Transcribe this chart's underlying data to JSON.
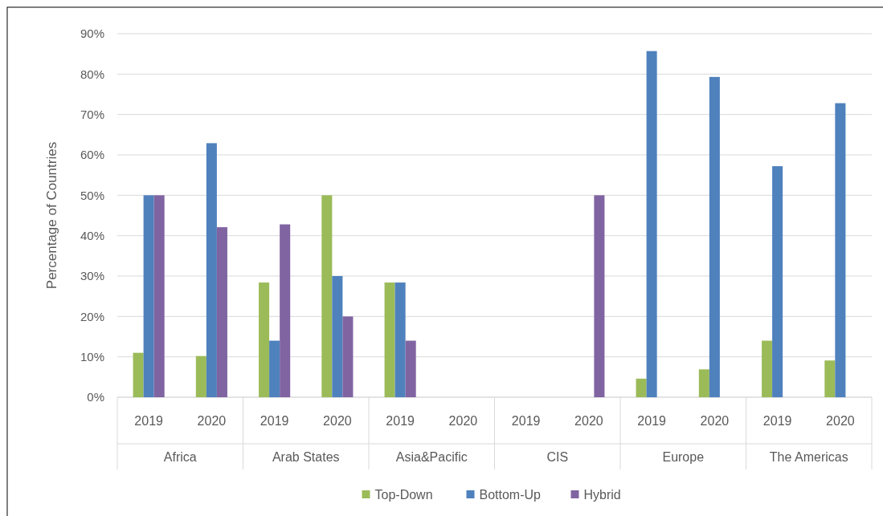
{
  "chart_data": {
    "type": "bar",
    "ylabel": "Percentage of Countries",
    "categories": [
      "2019",
      "2020",
      "2019",
      "2020",
      "2019",
      "2020",
      "2019",
      "2020",
      "2019",
      "2020",
      "2019",
      "2020"
    ],
    "annotations": [
      "Africa",
      "Arab States",
      "Asia&Pacific",
      "CIS",
      "Europe",
      "The Americas"
    ],
    "series": [
      {
        "name": "Top-Down",
        "color": "#9bbb59",
        "values": [
          11,
          10.2,
          28.4,
          50,
          28.4,
          0,
          0,
          0,
          4.6,
          6.9,
          14,
          9.1
        ]
      },
      {
        "name": "Bottom-Up",
        "color": "#4f81bd",
        "values": [
          50,
          62.9,
          14,
          30,
          28.4,
          0,
          0,
          0,
          85.7,
          79.3,
          57.2,
          72.8
        ]
      },
      {
        "name": "Hybrid",
        "color": "#8064a2",
        "values": [
          50,
          42.1,
          42.8,
          20,
          14,
          0,
          0,
          50,
          0,
          0,
          0,
          0
        ]
      }
    ],
    "ylim": [
      0,
      90
    ],
    "yticks": [
      {
        "value": 0,
        "label": "0%"
      },
      {
        "value": 10,
        "label": "10%"
      },
      {
        "value": 20,
        "label": "20%"
      },
      {
        "value": 30,
        "label": "30%"
      },
      {
        "value": 40,
        "label": "40%"
      },
      {
        "value": 50,
        "label": "50%"
      },
      {
        "value": 60,
        "label": "60%"
      },
      {
        "value": 70,
        "label": "70%"
      },
      {
        "value": 80,
        "label": "80%"
      },
      {
        "value": 90,
        "label": "90%"
      }
    ],
    "grid": "y",
    "legend": "bottom"
  }
}
